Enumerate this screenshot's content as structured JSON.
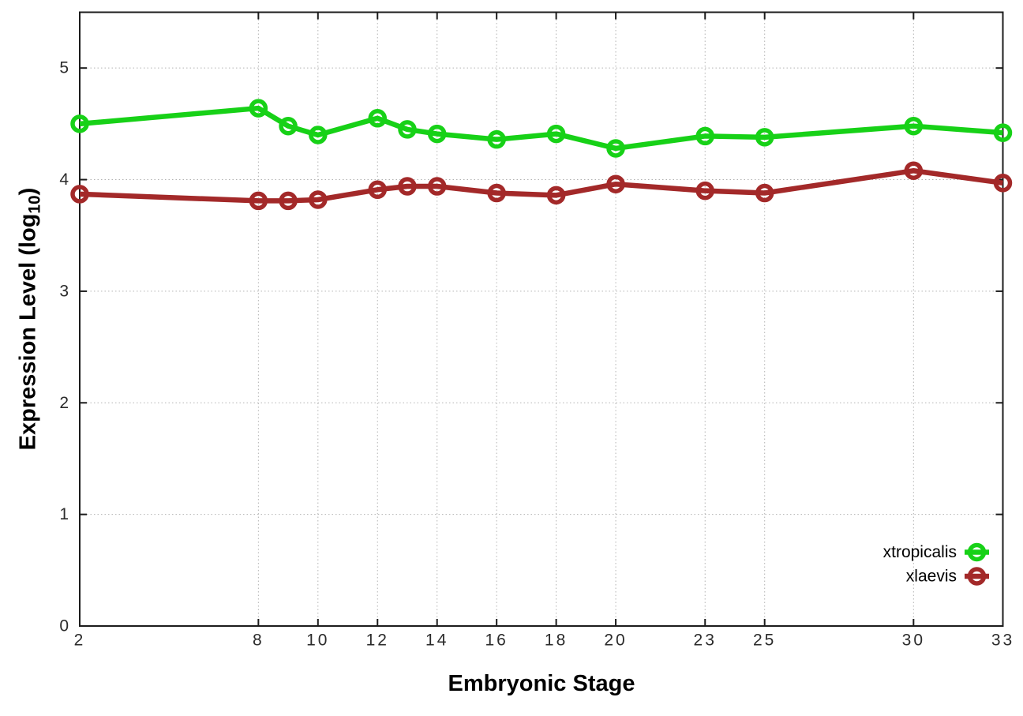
{
  "figure": {
    "background": "#ffffff"
  },
  "axes": {
    "x_label": "Embryonic Stage",
    "y_label_main": "Expression Level (log",
    "y_label_sub": "10",
    "y_label_close": ")"
  },
  "style": {
    "border_color": "#1c1c1c",
    "grid_color": "#b3b3b3",
    "tick_color": "#1c1c1c",
    "tick_label_color": "#2b2b2b",
    "legend_text_color": "#000000",
    "series_green": "#17d117",
    "series_red": "#a32929"
  },
  "chart_data": {
    "type": "line",
    "title": "",
    "xlabel": "Embryonic Stage",
    "ylabel": "Expression Level (log10)",
    "xlim": [
      2,
      33
    ],
    "ylim": [
      0,
      5.5
    ],
    "grid": true,
    "legend_position": "bottom-right-inside",
    "x_ticks": [
      2,
      8,
      10,
      12,
      14,
      16,
      18,
      20,
      23,
      25,
      30,
      33
    ],
    "y_ticks": [
      0,
      1,
      2,
      3,
      4,
      5
    ],
    "x": [
      2,
      8,
      9,
      10,
      12,
      13,
      14,
      16,
      18,
      20,
      23,
      25,
      30,
      33
    ],
    "series": [
      {
        "name": "xtropicalis",
        "color": "#17d117",
        "values": [
          4.5,
          4.64,
          4.48,
          4.4,
          4.55,
          4.45,
          4.41,
          4.36,
          4.41,
          4.28,
          4.39,
          4.38,
          4.48,
          4.42
        ]
      },
      {
        "name": "xlaevis",
        "color": "#a32929",
        "values": [
          3.87,
          3.81,
          3.81,
          3.82,
          3.91,
          3.94,
          3.94,
          3.88,
          3.86,
          3.96,
          3.9,
          3.88,
          4.08,
          3.97
        ]
      }
    ]
  }
}
